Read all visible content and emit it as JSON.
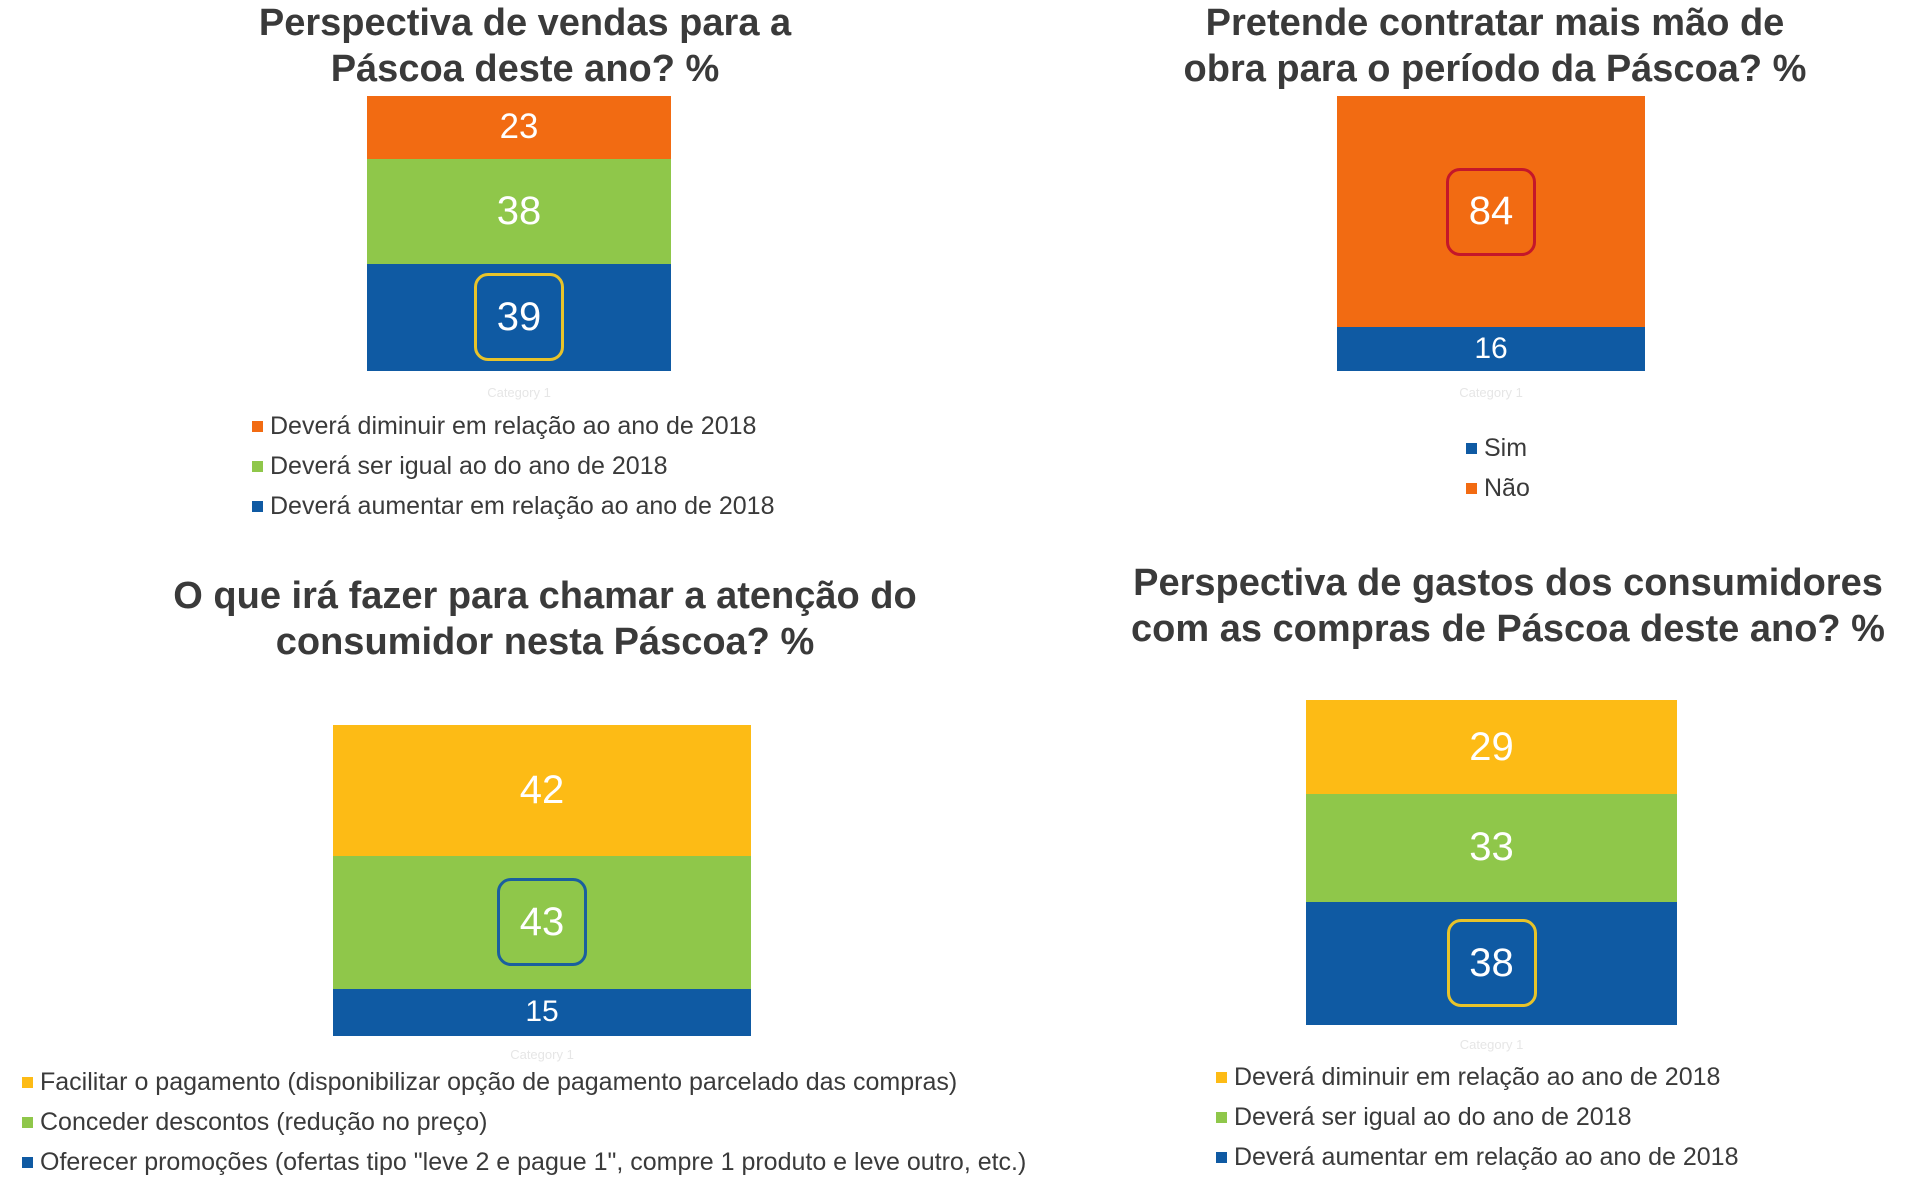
{
  "colors": {
    "orange": "#f26b12",
    "green": "#8fc74a",
    "blue": "#0f5aa3",
    "yellow": "#fdbb15",
    "highlight_yellow": "#e8c32a",
    "highlight_red": "#c4172a",
    "highlight_blue": "#1a5f9e"
  },
  "chart_data": [
    {
      "type": "bar",
      "stacked": true,
      "unit": "%",
      "title": "Perspectiva de vendas para a Páscoa deste ano? %",
      "title_lines": [
        "Perspectiva de vendas para a",
        "Páscoa deste ano? %"
      ],
      "categories": [
        "Category 1"
      ],
      "series": [
        {
          "name": "Deverá aumentar em relação ao ano de 2018",
          "values": [
            39
          ],
          "label": "39",
          "color": "#0f5aa3"
        },
        {
          "name": "Deverá ser igual ao do ano de 2018",
          "values": [
            38
          ],
          "label": "38",
          "color": "#8fc74a"
        },
        {
          "name": "Deverá diminuir em relação ao ano de 2018",
          "values": [
            23
          ],
          "label": "23",
          "color": "#f26b12"
        }
      ],
      "highlighted": "39",
      "legend": [
        {
          "label": "Deverá diminuir em relação ao ano de 2018",
          "color": "#f26b12"
        },
        {
          "label": "Deverá ser igual ao do ano de 2018",
          "color": "#8fc74a"
        },
        {
          "label": "Deverá aumentar em relação ao ano de 2018",
          "color": "#0f5aa3"
        }
      ],
      "legend_position": "bottom"
    },
    {
      "type": "bar",
      "stacked": true,
      "unit": "%",
      "title": "Pretende contratar mais mão de obra para o período da Páscoa? %",
      "title_lines": [
        "Pretende contratar mais mão de",
        "obra para o período da Páscoa? %"
      ],
      "categories": [
        "Category 1"
      ],
      "series": [
        {
          "name": "Sim",
          "values": [
            16
          ],
          "label": "16",
          "color": "#0f5aa3"
        },
        {
          "name": "Não",
          "values": [
            84
          ],
          "label": "84",
          "color": "#f26b12"
        }
      ],
      "highlighted": "84",
      "legend": [
        {
          "label": "Sim",
          "color": "#0f5aa3"
        },
        {
          "label": "Não",
          "color": "#f26b12"
        }
      ],
      "legend_position": "bottom"
    },
    {
      "type": "bar",
      "stacked": true,
      "unit": "%",
      "title": "O que irá fazer para chamar a atenção do consumidor nesta Páscoa? %",
      "title_lines": [
        "O que irá fazer para chamar a atenção do",
        "consumidor nesta Páscoa?  %"
      ],
      "categories": [
        "Category 1"
      ],
      "series": [
        {
          "name": "Oferecer promoções (ofertas tipo \"leve 2 e pague 1\", compre 1 produto e leve outro, etc.)",
          "values": [
            15
          ],
          "label": "15",
          "color": "#0f5aa3"
        },
        {
          "name": "Conceder descontos (redução no preço)",
          "values": [
            43
          ],
          "label": "43",
          "color": "#8fc74a"
        },
        {
          "name": "Facilitar o pagamento (disponibilizar opção de pagamento parcelado das compras)",
          "values": [
            42
          ],
          "label": "42",
          "color": "#fdbb15"
        }
      ],
      "highlighted": "43",
      "legend": [
        {
          "label": "Facilitar o pagamento (disponibilizar opção de pagamento parcelado das compras)",
          "color": "#fdbb15"
        },
        {
          "label": "Conceder descontos (redução no preço)",
          "color": "#8fc74a"
        },
        {
          "label": "Oferecer promoções (ofertas tipo \"leve 2 e pague 1\", compre 1 produto e leve outro, etc.)",
          "color": "#0f5aa3"
        }
      ],
      "legend_position": "bottom"
    },
    {
      "type": "bar",
      "stacked": true,
      "unit": "%",
      "title": "Perspectiva de gastos dos consumidores com as compras de Páscoa deste ano? %",
      "title_lines": [
        "Perspectiva de gastos dos consumidores",
        "com as compras de Páscoa deste ano? %"
      ],
      "categories": [
        "Category 1"
      ],
      "series": [
        {
          "name": "Deverá aumentar em relação ao ano de 2018",
          "values": [
            38
          ],
          "label": "38",
          "color": "#0f5aa3"
        },
        {
          "name": "Deverá ser igual ao do ano de 2018",
          "values": [
            33
          ],
          "label": "33",
          "color": "#8fc74a"
        },
        {
          "name": "Deverá diminuir em relação ao ano de 2018",
          "values": [
            29
          ],
          "label": "29",
          "color": "#fdbb15"
        }
      ],
      "highlighted": "38",
      "legend": [
        {
          "label": "Deverá diminuir em relação ao ano de 2018",
          "color": "#fdbb15"
        },
        {
          "label": "Deverá ser igual ao do ano de 2018",
          "color": "#8fc74a"
        },
        {
          "label": "Deverá aumentar em relação ao ano de 2018",
          "color": "#0f5aa3"
        }
      ],
      "legend_position": "bottom"
    }
  ]
}
